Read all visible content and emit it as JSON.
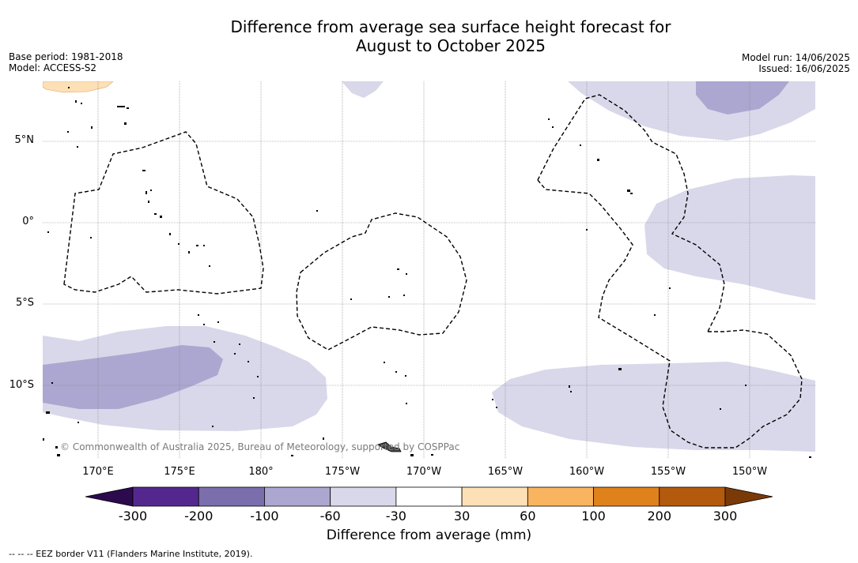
{
  "title_line1": "Difference from average sea surface height forecast for",
  "title_line2": "August to October 2025",
  "base_period": "Base period: 1981-2018",
  "model": "Model: ACCESS-S2",
  "model_run": "Model run: 14/06/2025",
  "issued": "Issued: 16/06/2025",
  "lat_labels": [
    "5°N",
    "0°",
    "5°S",
    "10°S"
  ],
  "lon_labels": [
    "170°E",
    "175°E",
    "180°",
    "175°W",
    "170°W",
    "165°W",
    "160°W",
    "155°W",
    "150°W"
  ],
  "copyright": "© Commonwealth of Australia 2025, Bureau of Meteorology, supported by COSPPac",
  "colorbar": {
    "ticks": [
      "-300",
      "-200",
      "-100",
      "-60",
      "-30",
      "30",
      "60",
      "100",
      "200",
      "300"
    ],
    "label": "Difference from average (mm)",
    "colors": {
      "below": "#2d0a4e",
      "bins": [
        "#54278f",
        "#7b6eac",
        "#aca7d0",
        "#d8d8ea",
        "#ffffff",
        "#fde0b6",
        "#f8b45e",
        "#e0821c",
        "#b35a0c"
      ],
      "above": "#7a3a08"
    }
  },
  "footnote": "--  --  -- EEZ border V11 (Flanders Marine Institute, 2019)."
}
